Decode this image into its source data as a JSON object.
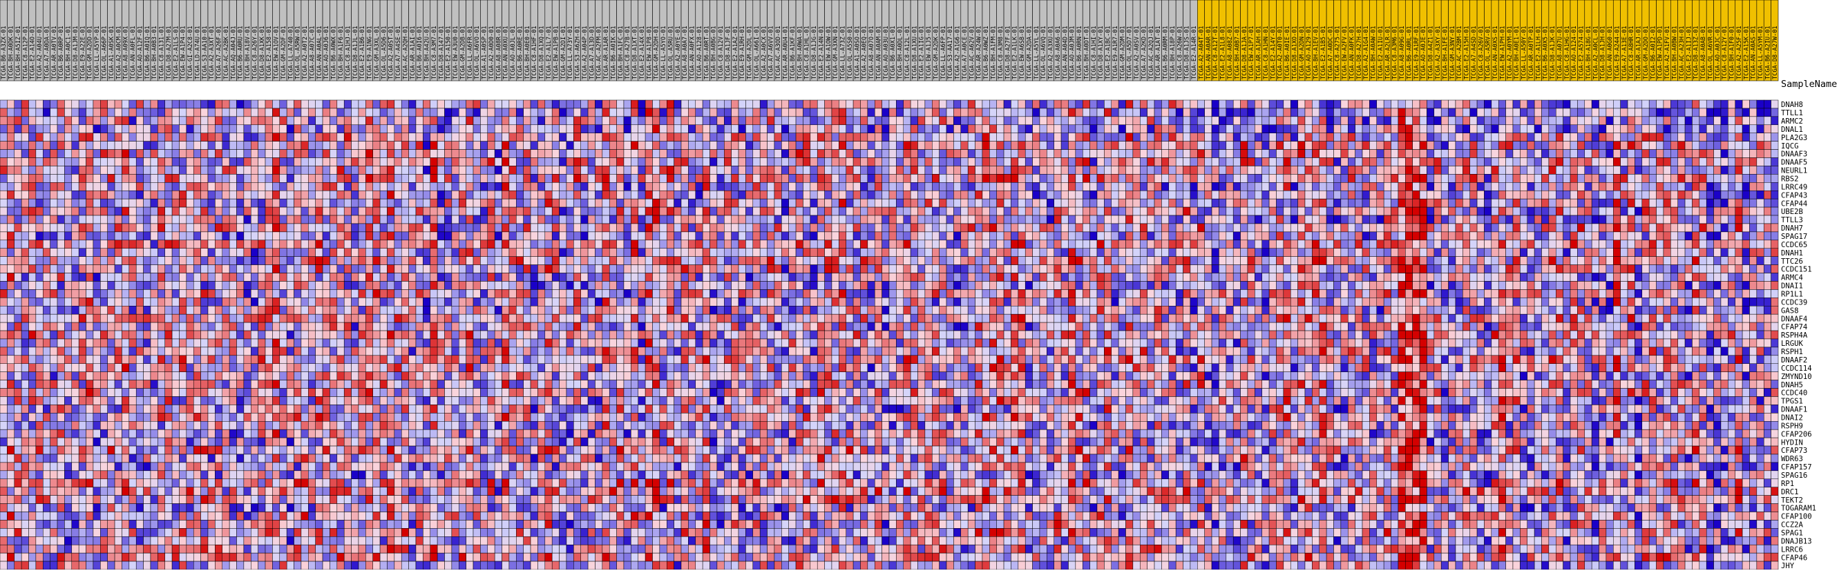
{
  "chart_data": {
    "type": "heatmap",
    "sample_name_header": "SampleName",
    "color_scale": {
      "low": "#1a00c8",
      "mid_low": "#d4d4fa",
      "mid_high": "#fad4dc",
      "high": "#d40000"
    },
    "group_colors": {
      "group_a": "#c0c0c0",
      "group_b": "#f0c000"
    },
    "genes": [
      "DNAH8",
      "TTLL1",
      "ARMC2",
      "DNAL1",
      "PLA2G3",
      "IQCG",
      "DNAAF3",
      "DNAAF5",
      "NEURL1",
      "RBS2",
      "LRRC49",
      "CFAP43",
      "CFAP44",
      "UBE2B",
      "TTLL3",
      "DNAH7",
      "SPAG17",
      "CCDC65",
      "DNAH1",
      "TTC26",
      "CCDC151",
      "ARMC4",
      "DNAI1",
      "RP1L1",
      "CCDC39",
      "GAS8",
      "DNAAF4",
      "CFAP74",
      "RSPH4A",
      "LRGUK",
      "RSPH1",
      "DNAAF2",
      "CCDC114",
      "ZMYND10",
      "DNAH5",
      "CCDC40",
      "TPGS1",
      "DNAAF1",
      "DNAI2",
      "RSPH9",
      "CFAP206",
      "HYDIN",
      "CFAP73",
      "WDR63",
      "CFAP157",
      "SPAG16",
      "RP1",
      "DRC1",
      "TEKT2",
      "TOGARAM1",
      "CFAP100",
      "CCZ2A",
      "SPAG1",
      "DNAJB13",
      "LRRC6",
      "CFAP46",
      "JHY"
    ],
    "samples_group_a": [
      "TCGA-B6-A3ZX-01",
      "TCGA-BH-A0DK-01",
      "TCGA-BH-A5IZ-01",
      "TCGA-C8-A12P-01",
      "TCGA-E2-A14O-01",
      "TCGA-A2-A04U-01",
      "TCGA-A7-A0DA-01",
      "TCGA-AR-A0TV-01",
      "TCGA-B6-A0RP-01",
      "TCGA-BH-A0C1-01",
      "TCGA-D8-A1JM-01",
      "TCGA-E9-A22E-01",
      "TCGA-GM-A2DD-01",
      "TCGA-LL-A5YP-01",
      "TCGA-OL-A66P-01",
      "TCGA-A1-A0SK-01",
      "TCGA-A2-A0CM-01",
      "TCGA-A8-A09X-01",
      "TCGA-AN-A0FL-01",
      "TCGA-AO-A12F-01",
      "TCGA-B6-A0IQ-01",
      "TCGA-BH-A0B3-01",
      "TCGA-C8-A131-01",
      "TCGA-D8-A27M-01",
      "TCGA-E2-A1LS-01",
      "TCGA-EW-A1P4-01",
      "TCGA-GI-A2C8-01",
      "TCGA-LD-A74U-01",
      "TCGA-S3-AA10-01",
      "TCGA-A2-A3XT-01",
      "TCGA-A7-A26F-01",
      "TCGA-AC-A2BK-01",
      "TCGA-AQ-A04J-01",
      "TCGA-B6-A0RU-01",
      "TCGA-BH-A18V-01",
      "TCGA-C8-A26Y-01",
      "TCGA-D8-A1XK-01",
      "TCGA-E2-A158-01",
      "TCGA-EW-A1OV-01",
      "TCGA-GM-A2DF-01",
      "TCGA-LL-A740-01",
      "TCGA-OL-A5RW-01",
      "TCGA-A2-A0T2-01",
      "TCGA-A8-A07C-01",
      "TCGA-AN-A0AL-01",
      "TCGA-AO-A0J6-01",
      "TCGA-B6-A0WX-01",
      "TCGA-BH-A1F6-01",
      "TCGA-C8-A1HJ-01",
      "TCGA-D8-A1JL-01",
      "TCGA-E2-A1B6-01",
      "TCGA-E9-A1NG-01",
      "TCGA-GM-A3XL-01",
      "TCGA-OL-A5D6-01",
      "TCGA-A2-A0ST-01",
      "TCGA-A7-A4SE-01",
      "TCGA-AC-A2QH-01",
      "TCGA-AR-A1AI-01",
      "TCGA-B6-A0I6-01",
      "TCGA-BH-A42U-01",
      "TCGA-C8-A3M7-01",
      "TCGA-D8-A147-01",
      "TCGA-E2-A150-01",
      "TCGA-EW-A3U0-01",
      "TCGA-GM-A2DB-01",
      "TCGA-LL-A6FR-01",
      "TCGA-OL-A6VO-01",
      "TCGA-A1-A0SP-01",
      "TCGA-A2-A0D0-01",
      "TCGA-A8-A08R-01",
      "TCGA-AN-A0XU-01",
      "TCGA-AO-A0JL-01",
      "TCGA-B6-A0RE-01",
      "TCGA-BH-A0E0-01",
      "TCGA-C8-A1HF-01",
      "TCGA-D8-A1XQ-01",
      "TCGA-E2-A1L7-01",
      "TCGA-EW-A1PB-01",
      "TCGA-GM-A2DI-01",
      "TCGA-LL-A73Y-01",
      "TCGA-S3-A6ZH-01",
      "TCGA-A2-A04P-01",
      "TCGA-A7-A13D-01",
      "TCGA-AC-A2FM-01",
      "TCGA-AR-A1AR-01",
      "TCGA-B6-A0IK-01",
      "TCGA-BH-A1FC-01",
      "TCGA-C8-A27B-01",
      "TCGA-D8-A1XT-01",
      "TCGA-E2-A14X-01",
      "TCGA-EW-A1P8-01",
      "TCGA-GM-A2DH-01",
      "TCGA-LL-A5YO-01",
      "TCGA-OL-A5RU-01",
      "TCGA-A2-A0YE-01",
      "TCGA-A8-A0A7-01",
      "TCGA-AN-A0FX-01",
      "TCGA-AO-A128-01",
      "TCGA-B6-A0RT-01",
      "TCGA-BH-A0BG-01",
      "TCGA-C8-A12V-01",
      "TCGA-D8-A1JF-01",
      "TCGA-E2-A1AZ-01",
      "TCGA-E9-A1RH-01",
      "TCGA-GM-A2DL-01",
      "TCGA-OL-A66I-01",
      "TCGA-A2-A0CX-01",
      "TCGA-A7-A6VV-01",
      "TCGA-AC-A3OD-01",
      "TCGA-AR-A0U4-01",
      "TCGA-B6-A1KF-01",
      "TCGA-BH-A0WA-01",
      "TCGA-C8-A1HL-01",
      "TCGA-D8-A1JG-01",
      "TCGA-E2-A14N-01",
      "TCGA-EW-A1OW-01",
      "TCGA-GM-A3XN-01",
      "TCGA-LL-A73Z-01",
      "TCGA-OL-A5S0-01",
      "TCGA-A1-A0SO-01",
      "TCGA-A2-A0EQ-01",
      "TCGA-A8-A07O-01",
      "TCGA-AN-A0AM-01",
      "TCGA-AO-A03U-01",
      "TCGA-B6-A0X1-01",
      "TCGA-BH-A0DL-01",
      "TCGA-C8-A12L-01",
      "TCGA-D8-A1XU-01",
      "TCGA-E2-A1IG-01",
      "TCGA-EW-A1J5-01",
      "TCGA-GM-A2DK-01",
      "TCGA-LL-A6FP-01",
      "TCGA-S3-AA17-01",
      "TCGA-A2-A1G6-01",
      "TCGA-A7-A0CE-01",
      "TCGA-AC-A62V-01",
      "TCGA-AR-A24W-01",
      "TCGA-B6-A0WZ-01",
      "TCGA-BH-A1FM-01",
      "TCGA-C8-A3M8-01",
      "TCGA-D8-A27F-01",
      "TCGA-E2-A1LK-01",
      "TCGA-EW-A6SB-01",
      "TCGA-GM-A2DA-01",
      "TCGA-LL-A5YL-01",
      "TCGA-OL-A6VQ-01",
      "TCGA-A2-A3XU-01",
      "TCGA-A8-A0A6-01",
      "TCGA-AN-A04D-01",
      "TCGA-AO-A0JM-01",
      "TCGA-B6-A0RN-01",
      "TCGA-BH-A0DT-01",
      "TCGA-C8-A1HI-01",
      "TCGA-D8-A1XY-01",
      "TCGA-E2-A1BC-01",
      "TCGA-E9-A1R7-01",
      "TCGA-GM-A2DM-01",
      "TCGA-OL-A5D7-01",
      "TCGA-A2-A0SV-01",
      "TCGA-A7-A2KD-01",
      "TCGA-AC-A2QJ-01",
      "TCGA-AR-A1AT-01",
      "TCGA-B6-A0RM-01",
      "TCGA-BH-A18P-01",
      "TCGA-C8-A26W-01",
      "TCGA-D8-A1JS-01",
      "TCGA-E2-A14R-01"
    ],
    "samples_group_b": [
      "TCGA-A2-A04T-01",
      "TCGA-AN-A0AR-01",
      "TCGA-C8-A12T-01",
      "TCGA-E2-A1L8-01",
      "TCGA-A8-A08Z-01",
      "TCGA-BH-A0B7-01",
      "TCGA-D8-A1JA-01",
      "TCGA-EW-A1P7-01",
      "TCGA-AR-A1AH-01",
      "TCGA-C8-A1HN-01",
      "TCGA-E2-A14Y-01",
      "TCGA-A2-A0T0-01",
      "TCGA-B6-A0IE-01",
      "TCGA-D8-A1XO-01",
      "TCGA-GM-A2DN-01",
      "TCGA-AO-A129-01",
      "TCGA-BH-A1EV-01",
      "TCGA-E2-A1B5-01",
      "TCGA-A7-A0DC-01",
      "TCGA-C8-A275-01",
      "TCGA-EW-A2FV-01",
      "TCGA-AN-A0FK-01",
      "TCGA-D8-A27H-01",
      "TCGA-A2-A1G4-01",
      "TCGA-BH-A0AW-01",
      "TCGA-E2-A1IU-01",
      "TCGA-AR-A2LR-01",
      "TCGA-C8-A3M6-01",
      "TCGA-A8-A09G-01",
      "TCGA-B6-A0RL-01",
      "TCGA-E9-A1RF-01",
      "TCGA-AO-A0JE-01",
      "TCGA-D8-A4Z1-01",
      "TCGA-A2-A3XY-01",
      "TCGA-BH-A1FE-01",
      "TCGA-GM-A3NY-01",
      "TCGA-AC-A2BM-01",
      "TCGA-E2-A15H-01",
      "TCGA-A7-A4SD-01",
      "TCGA-C8-A26V-01",
      "TCGA-OL-A5RV-01",
      "TCGA-AN-A0XS-01",
      "TCGA-EW-A1PH-01",
      "TCGA-A2-A0YM-01",
      "TCGA-BH-A0E1-01",
      "TCGA-LL-A50Y-01",
      "TCGA-AR-A0TP-01",
      "TCGA-E2-A1LH-01",
      "TCGA-B6-A0X5-01",
      "TCGA-D8-A1JK-01",
      "TCGA-A8-A07U-01",
      "TCGA-C8-A1HG-01",
      "TCGA-AO-A124-01",
      "TCGA-E2-A574-01",
      "TCGA-BH-A18G-01",
      "TCGA-A2-A0CL-01",
      "TCGA-D8-A1JH-01",
      "TCGA-AN-A0G0-01",
      "TCGA-E9-A244-01",
      "TCGA-A7-A13E-01",
      "TCGA-C8-A8HR-01",
      "TCGA-AR-A1AJ-01",
      "TCGA-GM-A2DO-01",
      "TCGA-B6-A0I2-01",
      "TCGA-EW-A1PD-01",
      "TCGA-A2-A1FV-01",
      "TCGA-BH-A0BW-01",
      "TCGA-AC-A23H-01",
      "TCGA-E2-A1IJ-01",
      "TCGA-D8-A13Z-01",
      "TCGA-A8-A0AB-01",
      "TCGA-OL-A6VR-01",
      "TCGA-AO-A0JC-01",
      "TCGA-C8-A12Y-01",
      "TCGA-BH-A1F0-01",
      "TCGA-A2-A25F-01",
      "TCGA-E2-A15K-01",
      "TCGA-AN-A0AS-01",
      "TCGA-LL-A5YM-01",
      "TCGA-B6-A2IU-01",
      "TCGA-D8-A27W-01"
    ]
  }
}
